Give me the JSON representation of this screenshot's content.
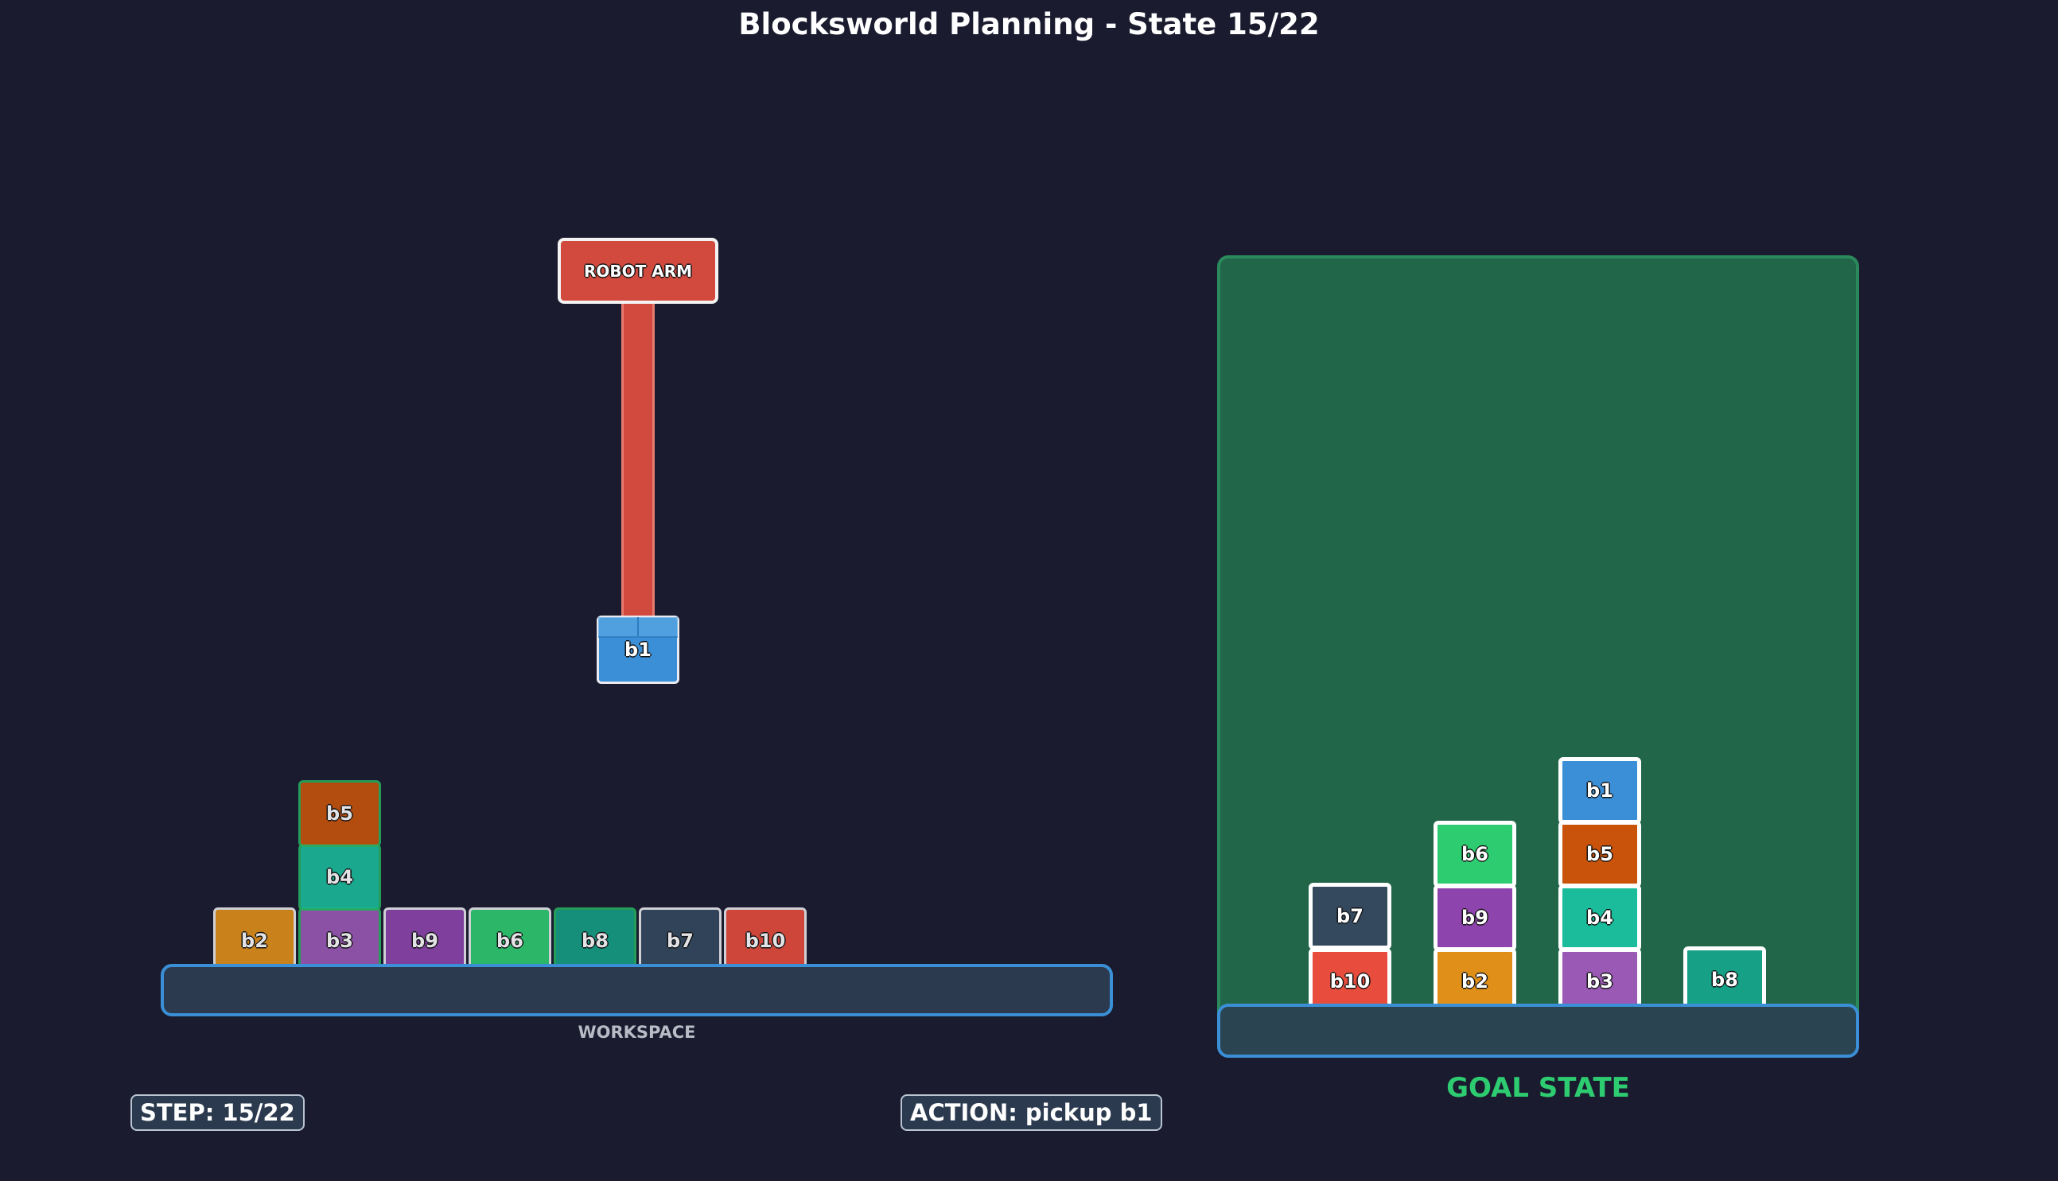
{
  "title": "Blocksworld Planning - State 15/22",
  "workspace": {
    "label": "WORKSPACE",
    "blocks": [
      {
        "name": "b2",
        "color": "#e09019"
      },
      {
        "name": "b3",
        "color": "#9b59b6"
      },
      {
        "name": "b4",
        "color": "#1abc9c"
      },
      {
        "name": "b5",
        "color": "#c9530b"
      },
      {
        "name": "b9",
        "color": "#8e44ad"
      },
      {
        "name": "b6",
        "color": "#2ecc71"
      },
      {
        "name": "b8",
        "color": "#16a085"
      },
      {
        "name": "b7",
        "color": "#34495e"
      },
      {
        "name": "b10",
        "color": "#e74c3c"
      }
    ],
    "stacks": [
      [
        "b2"
      ],
      [
        "b3",
        "b4",
        "b5"
      ],
      [
        "b9"
      ],
      [
        "b6"
      ],
      [
        "b8"
      ],
      [
        "b7"
      ],
      [
        "b10"
      ]
    ]
  },
  "robot_arm": {
    "label": "ROBOT ARM",
    "holding": "b1",
    "holding_color": "#3a8fd6"
  },
  "goal": {
    "label": "GOAL STATE",
    "stacks": [
      [
        "b10",
        "b7"
      ],
      [
        "b2",
        "b9",
        "b6"
      ],
      [
        "b3",
        "b4",
        "b5",
        "b1"
      ],
      [
        "b8"
      ]
    ]
  },
  "status": {
    "step": "STEP: 15/22",
    "action": "ACTION: pickup b1"
  },
  "colors": {
    "background": "#1a1b2e",
    "goal_panel": "#226649",
    "goal_label": "#2ecc71",
    "floor_border": "#3a8fd6"
  }
}
